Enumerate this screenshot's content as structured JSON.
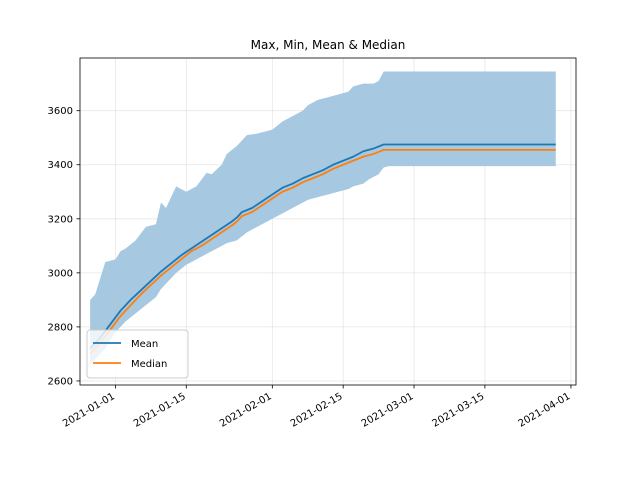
{
  "chart_data": {
    "type": "line",
    "title": "Max, Min, Mean & Median",
    "xlabel": "",
    "ylabel": "",
    "x_axis_type": "date",
    "xlim": [
      "2020-12-25",
      "2021-04-02"
    ],
    "ylim": [
      2585,
      3795
    ],
    "x_ticks": [
      "2021-01-01",
      "2021-01-15",
      "2021-02-01",
      "2021-02-15",
      "2021-03-01",
      "2021-03-15",
      "2021-04-01"
    ],
    "y_ticks": [
      2600,
      2800,
      3000,
      3200,
      3400,
      3600
    ],
    "grid": true,
    "legend_placement": "lower-left",
    "band": {
      "color": "#a6c8e0",
      "x": [
        "2020-12-27",
        "2020-12-28",
        "2020-12-29",
        "2020-12-30",
        "2021-01-01",
        "2021-01-02",
        "2021-01-03",
        "2021-01-05",
        "2021-01-07",
        "2021-01-09",
        "2021-01-10",
        "2021-01-11",
        "2021-01-12",
        "2021-01-13",
        "2021-01-15",
        "2021-01-17",
        "2021-01-19",
        "2021-01-20",
        "2021-01-22",
        "2021-01-23",
        "2021-01-25",
        "2021-01-27",
        "2021-01-29",
        "2021-02-01",
        "2021-02-03",
        "2021-02-05",
        "2021-02-07",
        "2021-02-08",
        "2021-02-10",
        "2021-02-12",
        "2021-02-14",
        "2021-02-16",
        "2021-02-17",
        "2021-02-19",
        "2021-02-20",
        "2021-02-21",
        "2021-02-22",
        "2021-02-23",
        "2021-02-24",
        "2021-03-01",
        "2021-03-15",
        "2021-03-29"
      ],
      "max": [
        2900,
        2920,
        2980,
        3040,
        3050,
        3080,
        3090,
        3120,
        3170,
        3180,
        3260,
        3240,
        3280,
        3320,
        3300,
        3320,
        3370,
        3365,
        3400,
        3440,
        3470,
        3510,
        3515,
        3530,
        3560,
        3580,
        3600,
        3620,
        3640,
        3650,
        3660,
        3670,
        3690,
        3700,
        3700,
        3700,
        3710,
        3745,
        3745,
        3745,
        3745,
        3745
      ],
      "min": [
        2660,
        2680,
        2700,
        2720,
        2780,
        2800,
        2820,
        2850,
        2880,
        2910,
        2940,
        2960,
        2980,
        3000,
        3030,
        3050,
        3070,
        3080,
        3100,
        3110,
        3120,
        3150,
        3170,
        3200,
        3220,
        3240,
        3260,
        3270,
        3280,
        3290,
        3300,
        3310,
        3320,
        3330,
        3345,
        3355,
        3365,
        3390,
        3395,
        3395,
        3395,
        3395
      ]
    },
    "series": [
      {
        "name": "Mean",
        "color": "#1f77b4",
        "x": [
          "2020-12-27",
          "2020-12-29",
          "2020-12-31",
          "2021-01-02",
          "2021-01-04",
          "2021-01-06",
          "2021-01-08",
          "2021-01-10",
          "2021-01-12",
          "2021-01-14",
          "2021-01-16",
          "2021-01-18",
          "2021-01-20",
          "2021-01-22",
          "2021-01-24",
          "2021-01-25",
          "2021-01-26",
          "2021-01-28",
          "2021-01-30",
          "2021-02-01",
          "2021-02-03",
          "2021-02-05",
          "2021-02-07",
          "2021-02-09",
          "2021-02-11",
          "2021-02-13",
          "2021-02-15",
          "2021-02-17",
          "2021-02-19",
          "2021-02-21",
          "2021-02-23",
          "2021-02-24",
          "2021-03-01",
          "2021-03-15",
          "2021-03-29"
        ],
        "values": [
          2720,
          2760,
          2810,
          2860,
          2900,
          2935,
          2970,
          3005,
          3035,
          3065,
          3090,
          3115,
          3140,
          3165,
          3190,
          3205,
          3225,
          3240,
          3265,
          3290,
          3315,
          3330,
          3350,
          3365,
          3380,
          3400,
          3415,
          3430,
          3450,
          3460,
          3475,
          3475,
          3475,
          3475,
          3475
        ]
      },
      {
        "name": "Median",
        "color": "#ff7f0e",
        "x": [
          "2020-12-27",
          "2020-12-29",
          "2020-12-31",
          "2021-01-02",
          "2021-01-04",
          "2021-01-06",
          "2021-01-08",
          "2021-01-10",
          "2021-01-12",
          "2021-01-14",
          "2021-01-16",
          "2021-01-18",
          "2021-01-20",
          "2021-01-22",
          "2021-01-24",
          "2021-01-25",
          "2021-01-26",
          "2021-01-28",
          "2021-01-30",
          "2021-02-01",
          "2021-02-03",
          "2021-02-05",
          "2021-02-07",
          "2021-02-09",
          "2021-02-11",
          "2021-02-13",
          "2021-02-15",
          "2021-02-17",
          "2021-02-19",
          "2021-02-21",
          "2021-02-23",
          "2021-02-24",
          "2021-03-01",
          "2021-03-15",
          "2021-03-29"
        ],
        "values": [
          2700,
          2740,
          2790,
          2840,
          2880,
          2920,
          2955,
          2990,
          3020,
          3050,
          3080,
          3100,
          3125,
          3150,
          3175,
          3190,
          3210,
          3225,
          3250,
          3275,
          3300,
          3315,
          3335,
          3350,
          3365,
          3385,
          3400,
          3415,
          3430,
          3440,
          3455,
          3455,
          3455,
          3455,
          3455
        ]
      }
    ]
  }
}
